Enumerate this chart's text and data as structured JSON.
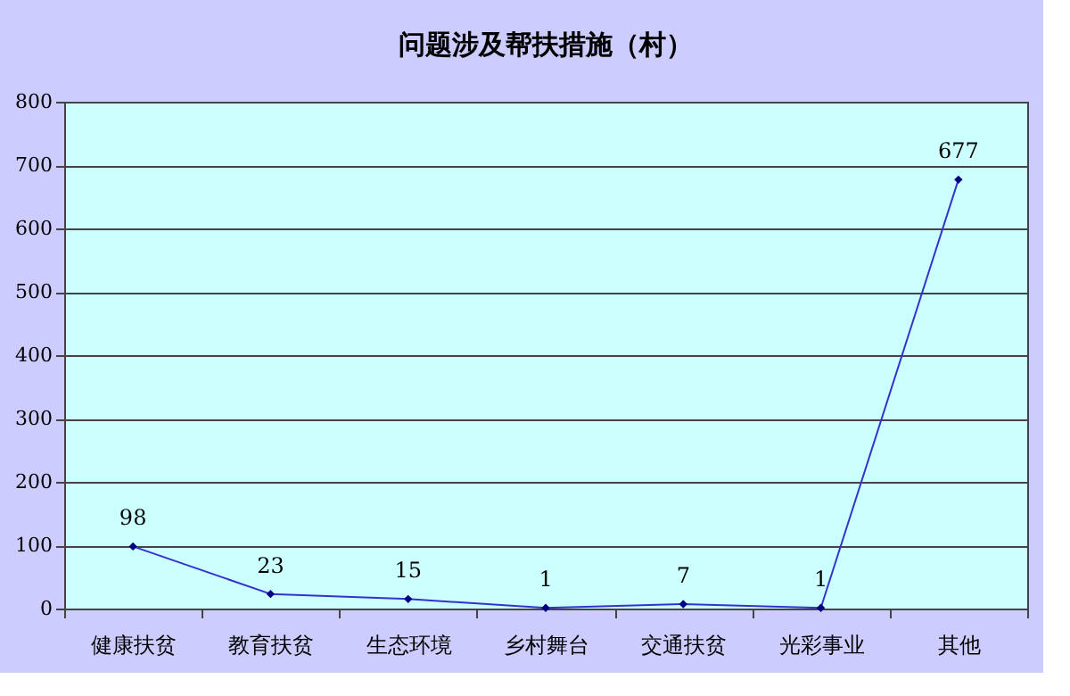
{
  "chart_data": {
    "type": "line",
    "title": "问题涉及帮扶措施（村）",
    "categories": [
      "健康扶贫",
      "教育扶贫",
      "生态环境",
      "乡村舞台",
      "交通扶贫",
      "光彩事业",
      "其他"
    ],
    "series": [
      {
        "color": "#3333cc",
        "values": [
          98,
          23,
          15,
          1,
          7,
          1,
          677
        ]
      }
    ],
    "ylim": [
      0,
      800
    ],
    "yticks": [
      0,
      100,
      200,
      300,
      400,
      500,
      600,
      700,
      800
    ],
    "grid": "y",
    "marker": "diamond",
    "data_labels": true
  }
}
